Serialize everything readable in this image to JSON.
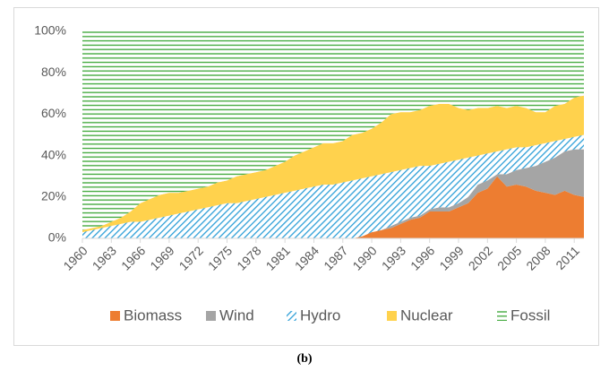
{
  "chart_data": {
    "type": "stacked_area",
    "caption": "(b)",
    "x": [
      1960,
      1961,
      1962,
      1963,
      1964,
      1965,
      1966,
      1967,
      1968,
      1969,
      1970,
      1971,
      1972,
      1973,
      1974,
      1975,
      1976,
      1977,
      1978,
      1979,
      1980,
      1981,
      1982,
      1983,
      1984,
      1985,
      1986,
      1987,
      1988,
      1989,
      1990,
      1991,
      1992,
      1993,
      1994,
      1995,
      1996,
      1997,
      1998,
      1999,
      2000,
      2001,
      2002,
      2003,
      2004,
      2005,
      2006,
      2007,
      2008,
      2009,
      2010,
      2011,
      2012
    ],
    "xlim": [
      1960,
      2012
    ],
    "xticks": [
      1960,
      1963,
      1966,
      1969,
      1972,
      1975,
      1978,
      1981,
      1984,
      1987,
      1990,
      1993,
      1996,
      1999,
      2002,
      2005,
      2008,
      2011
    ],
    "ylim": [
      0,
      100
    ],
    "yticks": [
      {
        "value": 0,
        "label": "0%"
      },
      {
        "value": 20,
        "label": "20%"
      },
      {
        "value": 40,
        "label": "40%"
      },
      {
        "value": 60,
        "label": "60%"
      },
      {
        "value": 80,
        "label": "80%"
      },
      {
        "value": 100,
        "label": "100%"
      }
    ],
    "legend": "bottom",
    "series": [
      {
        "name": "Biomass",
        "color": "#ed7d31",
        "values": [
          0,
          0,
          0,
          0,
          0,
          0,
          0,
          0,
          0,
          0,
          0,
          0,
          0,
          0,
          0,
          0,
          0,
          0,
          0,
          0,
          0,
          0,
          0,
          0,
          0,
          0,
          0,
          0,
          0,
          1,
          3,
          4,
          5,
          7,
          9,
          10,
          13,
          13,
          13,
          15,
          17,
          22,
          24,
          30,
          25,
          26,
          25,
          23,
          22,
          21,
          23,
          21,
          20
        ]
      },
      {
        "name": "Wind",
        "color": "#a5a5a5",
        "values": [
          0,
          0,
          0,
          0,
          0,
          0,
          0,
          0,
          0,
          0,
          0,
          0,
          0,
          0,
          0,
          0,
          0,
          0,
          0,
          0,
          0,
          0,
          0,
          0,
          0,
          0,
          0,
          0,
          0,
          0,
          0,
          0,
          1,
          1,
          1,
          1,
          1,
          2,
          2,
          2,
          3,
          4,
          4,
          1,
          6,
          7,
          9,
          12,
          15,
          18,
          19,
          22,
          23
        ]
      },
      {
        "name": "Hydro",
        "color": "#2e9fd8",
        "hatch": "diagonal",
        "values": [
          3,
          4,
          5,
          6,
          7,
          8,
          8,
          9,
          10,
          11,
          12,
          13,
          14,
          15,
          16,
          17,
          17,
          18,
          19,
          20,
          21,
          22,
          23,
          24,
          25,
          26,
          26,
          27,
          28,
          28,
          27,
          27,
          26,
          25,
          24,
          24,
          21,
          21,
          22,
          21,
          19,
          14,
          13,
          11,
          12,
          11,
          10,
          10,
          9,
          8,
          6,
          6,
          7
        ]
      },
      {
        "name": "Nuclear",
        "color": "#ffd24d",
        "values": [
          1,
          1,
          1,
          2,
          3,
          5,
          9,
          10,
          11,
          11,
          10,
          10,
          10,
          10,
          11,
          11,
          13,
          13,
          13,
          13,
          14,
          15,
          17,
          18,
          19,
          20,
          20,
          20,
          22,
          22,
          23,
          25,
          28,
          28,
          27,
          27,
          29,
          29,
          28,
          25,
          23,
          23,
          22,
          22,
          20,
          20,
          19,
          16,
          15,
          17,
          17,
          19,
          19
        ]
      },
      {
        "name": "Fossil",
        "color": "#3aa534",
        "hatch": "horizontal",
        "values": [
          96,
          95,
          94,
          92,
          90,
          87,
          83,
          81,
          79,
          78,
          78,
          77,
          76,
          75,
          73,
          72,
          70,
          69,
          68,
          67,
          65,
          63,
          60,
          58,
          56,
          54,
          54,
          53,
          50,
          49,
          47,
          44,
          40,
          39,
          39,
          38,
          36,
          35,
          35,
          37,
          38,
          37,
          37,
          36,
          37,
          36,
          37,
          39,
          39,
          36,
          35,
          32,
          31
        ]
      }
    ]
  }
}
